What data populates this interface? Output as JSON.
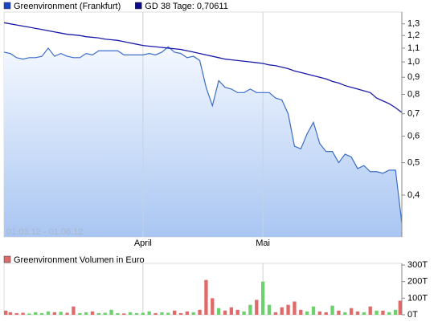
{
  "chart_data": [
    {
      "type": "line",
      "log_scale": true,
      "categories": [
        null,
        null,
        null,
        null,
        null,
        null,
        null,
        null,
        null,
        null,
        null,
        null,
        null,
        null,
        null,
        null,
        null,
        null,
        null,
        null,
        null,
        null,
        "April",
        null,
        null,
        null,
        null,
        null,
        null,
        null,
        null,
        null,
        null,
        null,
        null,
        null,
        null,
        null,
        null,
        null,
        null,
        "Mai",
        null,
        null,
        null,
        null,
        null,
        null,
        null,
        null,
        null,
        null,
        null,
        null,
        null,
        null,
        null,
        null,
        null,
        null,
        null,
        null,
        null,
        null
      ],
      "date_range": "01.03.12 - 01.06.12",
      "series": [
        {
          "name": "Greenvironment (Frankfurt)",
          "color": "#3a6cc8",
          "legend_color": "#1c45c4",
          "area": true,
          "values": [
            1.07,
            1.06,
            1.03,
            1.02,
            1.03,
            1.03,
            1.04,
            1.1,
            1.04,
            1.06,
            1.04,
            1.03,
            1.03,
            1.06,
            1.05,
            1.08,
            1.08,
            1.08,
            1.08,
            1.05,
            1.05,
            1.05,
            1.05,
            1.06,
            1.05,
            1.07,
            1.11,
            1.07,
            1.06,
            1.03,
            1.04,
            1.01,
            0.84,
            0.74,
            0.88,
            0.84,
            0.83,
            0.81,
            0.81,
            0.83,
            0.81,
            0.81,
            0.81,
            0.78,
            0.77,
            0.7,
            0.56,
            0.55,
            0.61,
            0.66,
            0.57,
            0.54,
            0.54,
            0.5,
            0.53,
            0.52,
            0.48,
            0.49,
            0.47,
            0.47,
            0.465,
            0.475,
            0.475,
            0.33
          ]
        },
        {
          "name": "GD 38 Tage: 0,70611",
          "color": "#1a1aa8",
          "legend_color": "#0a0a8a",
          "area": false,
          "values": [
            1.31,
            1.3,
            1.29,
            1.28,
            1.27,
            1.26,
            1.25,
            1.24,
            1.23,
            1.22,
            1.21,
            1.205,
            1.2,
            1.19,
            1.185,
            1.18,
            1.17,
            1.165,
            1.16,
            1.15,
            1.14,
            1.13,
            1.12,
            1.115,
            1.11,
            1.105,
            1.1,
            1.095,
            1.09,
            1.08,
            1.07,
            1.06,
            1.05,
            1.04,
            1.03,
            1.02,
            1.015,
            1.01,
            1.005,
            1.0,
            0.995,
            0.99,
            0.98,
            0.975,
            0.965,
            0.955,
            0.94,
            0.93,
            0.92,
            0.91,
            0.9,
            0.89,
            0.875,
            0.865,
            0.85,
            0.84,
            0.83,
            0.82,
            0.81,
            0.78,
            0.765,
            0.75,
            0.73,
            0.706
          ]
        }
      ],
      "ylim": [
        0.3,
        1.41
      ],
      "yticks": [
        {
          "value": 1.3,
          "label": "1,3"
        },
        {
          "value": 1.2,
          "label": "1,2"
        },
        {
          "value": 1.1,
          "label": "1,1"
        },
        {
          "value": 1.0,
          "label": "1,0"
        },
        {
          "value": 0.9,
          "label": "0,9"
        },
        {
          "value": 0.8,
          "label": "0,8"
        },
        {
          "value": 0.7,
          "label": "0,7"
        },
        {
          "value": 0.6,
          "label": "0,6"
        },
        {
          "value": 0.5,
          "label": "0,5"
        },
        {
          "value": 0.4,
          "label": "0,4"
        }
      ]
    },
    {
      "type": "bar",
      "series": [
        {
          "name": "Greenvironment Volumen in Euro",
          "color": "#e06a6a",
          "up_color": "#6cd06c",
          "values": [
            25,
            15,
            10,
            12,
            8,
            15,
            10,
            20,
            15,
            18,
            12,
            50,
            10,
            15,
            20,
            10,
            12,
            30,
            10,
            8,
            15,
            10,
            12,
            20,
            10,
            15,
            12,
            25,
            10,
            20,
            15,
            30,
            210,
            100,
            40,
            25,
            45,
            30,
            20,
            60,
            90,
            200,
            60,
            15,
            45,
            60,
            80,
            30,
            20,
            50,
            20,
            15,
            55,
            25,
            15,
            40,
            20,
            15,
            50,
            25,
            25,
            15,
            30,
            85
          ]
        }
      ],
      "ylim": [
        0,
        310
      ],
      "yticks": [
        {
          "value": 0,
          "label": "0T"
        },
        {
          "value": 100,
          "label": "100T"
        },
        {
          "value": 200,
          "label": "200T"
        },
        {
          "value": 300,
          "label": "300T"
        }
      ]
    }
  ]
}
